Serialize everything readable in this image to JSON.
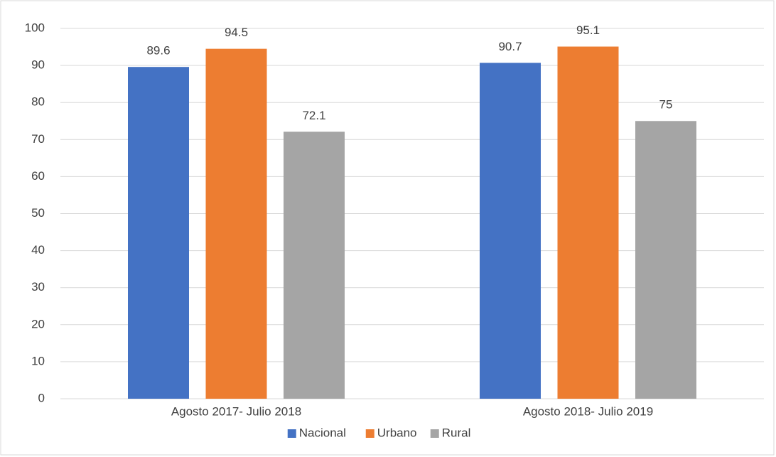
{
  "chart_data": {
    "type": "bar",
    "categories": [
      "Agosto 2017- Julio 2018",
      "Agosto 2018- Julio 2019"
    ],
    "series": [
      {
        "name": "Nacional",
        "color": "#4472c4",
        "values": [
          89.6,
          90.7
        ]
      },
      {
        "name": "Urbano",
        "color": "#ed7d31",
        "values": [
          94.5,
          95.1
        ]
      },
      {
        "name": "Rural",
        "color": "#a5a5a5",
        "values": [
          72.1,
          75
        ]
      }
    ],
    "ylim": [
      0,
      100
    ],
    "yticks": [
      0,
      10,
      20,
      30,
      40,
      50,
      60,
      70,
      80,
      90,
      100
    ],
    "grid": true,
    "legend": "bottom"
  }
}
